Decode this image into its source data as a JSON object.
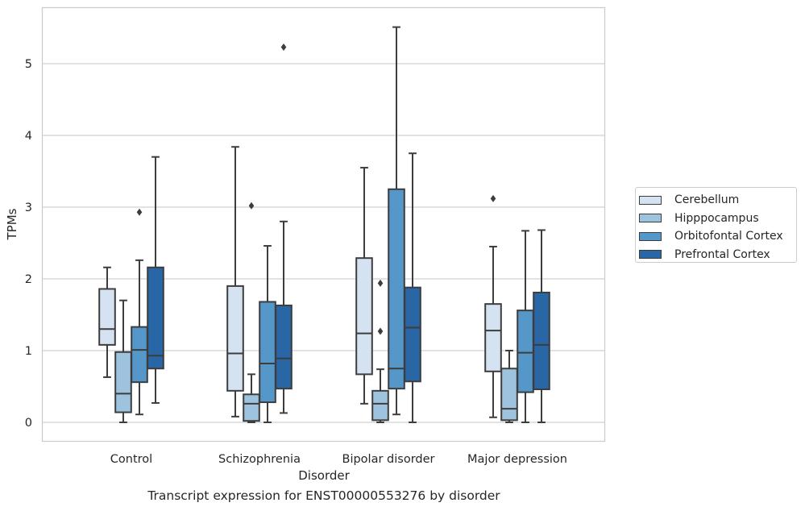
{
  "caption": "Transcript expression for ENST00000553276 by disorder",
  "chart_data": {
    "type": "boxplot",
    "xlabel": "Disorder",
    "ylabel": "TPMs",
    "ylim": [
      -0.27,
      5.8
    ],
    "yticks": [
      0,
      1,
      2,
      3,
      4,
      5
    ],
    "categories": [
      "Control",
      "Schizophrenia",
      "Bipolar disorder",
      "Major depression"
    ],
    "grid": true,
    "legend_position": "right",
    "series": [
      {
        "name": "Cerebellum",
        "color": "#d5e2f1",
        "boxes": [
          {
            "whisker_low": 0.63,
            "q1": 1.08,
            "median": 1.3,
            "q3": 1.86,
            "whisker_high": 2.16,
            "outliers": []
          },
          {
            "whisker_low": 0.08,
            "q1": 0.44,
            "median": 0.96,
            "q3": 1.9,
            "whisker_high": 3.84,
            "outliers": []
          },
          {
            "whisker_low": 0.26,
            "q1": 0.67,
            "median": 1.24,
            "q3": 2.29,
            "whisker_high": 3.55,
            "outliers": []
          },
          {
            "whisker_low": 0.07,
            "q1": 0.71,
            "median": 1.28,
            "q3": 1.65,
            "whisker_high": 2.45,
            "outliers": [
              3.12
            ]
          }
        ]
      },
      {
        "name": "Hipppocampus",
        "color": "#9dc3de",
        "boxes": [
          {
            "whisker_low": 0.0,
            "q1": 0.14,
            "median": 0.4,
            "q3": 0.98,
            "whisker_high": 1.7,
            "outliers": []
          },
          {
            "whisker_low": 0.0,
            "q1": 0.02,
            "median": 0.26,
            "q3": 0.39,
            "whisker_high": 0.67,
            "outliers": [
              3.02
            ]
          },
          {
            "whisker_low": 0.0,
            "q1": 0.03,
            "median": 0.26,
            "q3": 0.44,
            "whisker_high": 0.74,
            "outliers": [
              1.94,
              1.27
            ]
          },
          {
            "whisker_low": 0.0,
            "q1": 0.03,
            "median": 0.19,
            "q3": 0.75,
            "whisker_high": 1.0,
            "outliers": []
          }
        ]
      },
      {
        "name": "Orbitofontal Cortex",
        "color": "#5597c8",
        "boxes": [
          {
            "whisker_low": 0.11,
            "q1": 0.56,
            "median": 1.01,
            "q3": 1.33,
            "whisker_high": 2.26,
            "outliers": [
              2.93
            ]
          },
          {
            "whisker_low": 0.0,
            "q1": 0.28,
            "median": 0.82,
            "q3": 1.68,
            "whisker_high": 2.46,
            "outliers": []
          },
          {
            "whisker_low": 0.11,
            "q1": 0.47,
            "median": 0.75,
            "q3": 3.25,
            "whisker_high": 5.51,
            "outliers": []
          },
          {
            "whisker_low": 0.0,
            "q1": 0.42,
            "median": 0.97,
            "q3": 1.56,
            "whisker_high": 2.67,
            "outliers": []
          }
        ]
      },
      {
        "name": "Prefrontal Cortex",
        "color": "#2966a5",
        "boxes": [
          {
            "whisker_low": 0.27,
            "q1": 0.75,
            "median": 0.93,
            "q3": 2.16,
            "whisker_high": 3.7,
            "outliers": []
          },
          {
            "whisker_low": 0.13,
            "q1": 0.47,
            "median": 0.89,
            "q3": 1.63,
            "whisker_high": 2.8,
            "outliers": [
              5.23
            ]
          },
          {
            "whisker_low": 0.0,
            "q1": 0.57,
            "median": 1.32,
            "q3": 1.88,
            "whisker_high": 3.75,
            "outliers": []
          },
          {
            "whisker_low": 0.0,
            "q1": 0.46,
            "median": 1.08,
            "q3": 1.81,
            "whisker_high": 2.68,
            "outliers": []
          }
        ]
      }
    ]
  }
}
